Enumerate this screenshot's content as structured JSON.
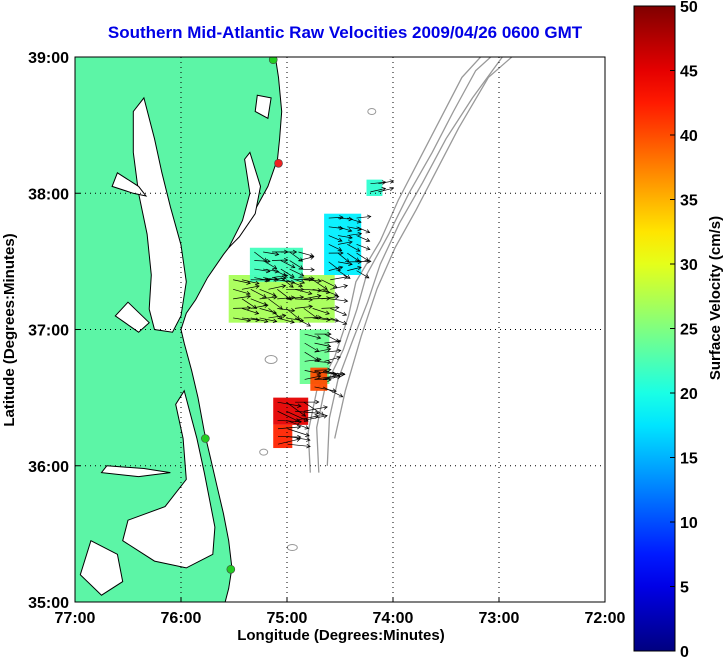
{
  "chart_data": {
    "type": "heatmap",
    "title": "Southern Mid-Atlantic Raw Velocities 2009/04/26 0600 GMT",
    "xlabel": "Longitude (Degrees:Minutes)",
    "ylabel": "Latitude (Degrees:Minutes)",
    "colorbar_label": "Surface Velocity (cm/s)",
    "xlim": [
      -77,
      -72
    ],
    "ylim": [
      35,
      39
    ],
    "x_ticks": [
      {
        "value": -77,
        "label": "77:00"
      },
      {
        "value": -76,
        "label": "76:00"
      },
      {
        "value": -75,
        "label": "75:00"
      },
      {
        "value": -74,
        "label": "74:00"
      },
      {
        "value": -73,
        "label": "73:00"
      },
      {
        "value": -72,
        "label": "72:00"
      }
    ],
    "y_ticks": [
      {
        "value": 35,
        "label": "35:00"
      },
      {
        "value": 36,
        "label": "36:00"
      },
      {
        "value": 37,
        "label": "37:00"
      },
      {
        "value": 38,
        "label": "38:00"
      },
      {
        "value": 39,
        "label": "39:00"
      }
    ],
    "colorbar_range": [
      0,
      50
    ],
    "colorbar_ticks": [
      0,
      5,
      10,
      15,
      20,
      25,
      30,
      35,
      40,
      45,
      50
    ],
    "grid": "dotted",
    "land_color": "#5cf5a6",
    "bathymetry_color": "#999999",
    "arrow_color": "#000000",
    "stations": [
      {
        "lon": -75.13,
        "lat": 38.98,
        "color": "#22cc22"
      },
      {
        "lon": -75.08,
        "lat": 38.22,
        "color": "#ee2222"
      },
      {
        "lon": -75.77,
        "lat": 36.2,
        "color": "#22cc22"
      },
      {
        "lon": -75.53,
        "lat": 35.24,
        "color": "#22cc22"
      }
    ],
    "velocity_fields": [
      {
        "lon_range": [
          -75.55,
          -74.55
        ],
        "lat_range": [
          37.05,
          37.4
        ],
        "speed": 27
      },
      {
        "lon_range": [
          -75.35,
          -74.85
        ],
        "lat_range": [
          37.35,
          37.6
        ],
        "speed": 22
      },
      {
        "lon_range": [
          -74.65,
          -74.3
        ],
        "lat_range": [
          37.4,
          37.85
        ],
        "speed": 18
      },
      {
        "lon_range": [
          -74.25,
          -74.1
        ],
        "lat_range": [
          37.98,
          38.1
        ],
        "speed": 21
      },
      {
        "lon_range": [
          -74.88,
          -74.6
        ],
        "lat_range": [
          36.6,
          37.0
        ],
        "speed": 24
      },
      {
        "lon_range": [
          -74.78,
          -74.62
        ],
        "lat_range": [
          36.55,
          36.72
        ],
        "speed": 40
      },
      {
        "lon_range": [
          -75.13,
          -74.8
        ],
        "lat_range": [
          36.3,
          36.5
        ],
        "speed": 45
      },
      {
        "lon_range": [
          -75.13,
          -74.95
        ],
        "lat_range": [
          36.13,
          36.3
        ],
        "speed": 42
      }
    ]
  }
}
